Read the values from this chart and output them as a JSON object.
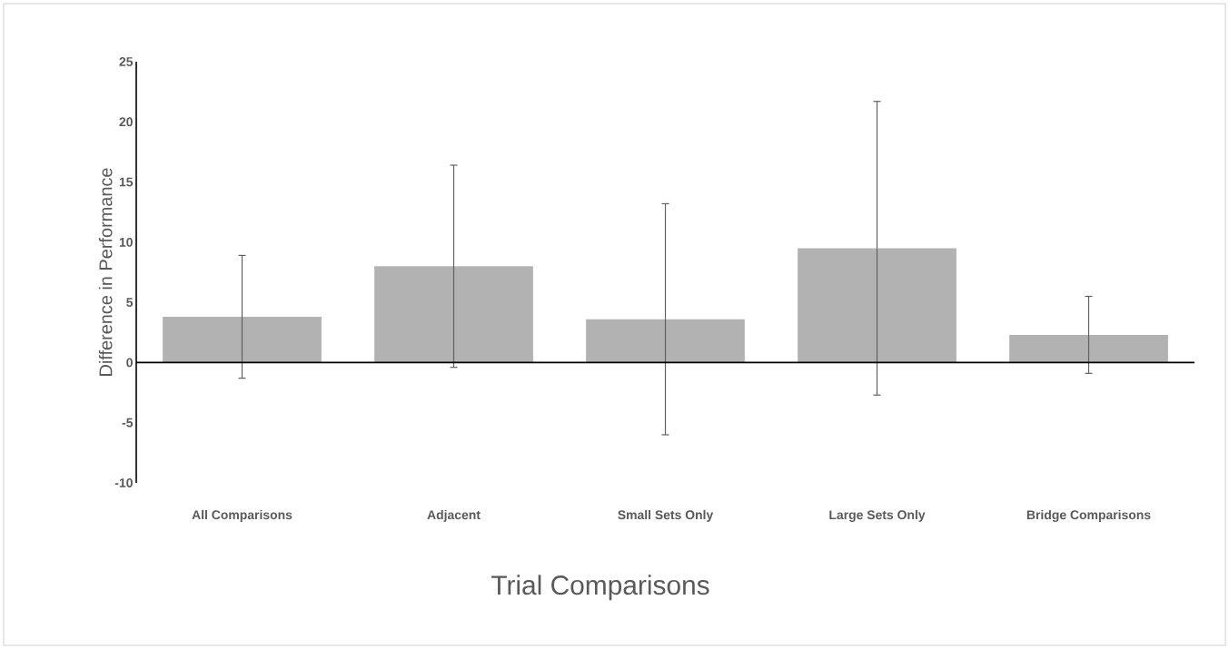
{
  "chart_data": {
    "type": "bar",
    "xlabel": "Trial Comparisons",
    "ylabel": "Difference in Performance",
    "categories": [
      "All Comparisons",
      "Adjacent",
      "Small Sets Only",
      "Large Sets Only",
      "Bridge Comparisons"
    ],
    "values": [
      3.8,
      8.0,
      3.6,
      9.5,
      2.3
    ],
    "errors": [
      5.1,
      8.4,
      9.6,
      12.2,
      3.2
    ],
    "color": "#b2b2b2",
    "ylim": [
      -10,
      25
    ],
    "yticks": [
      -10,
      -5,
      0,
      5,
      10,
      15,
      20,
      25
    ]
  }
}
